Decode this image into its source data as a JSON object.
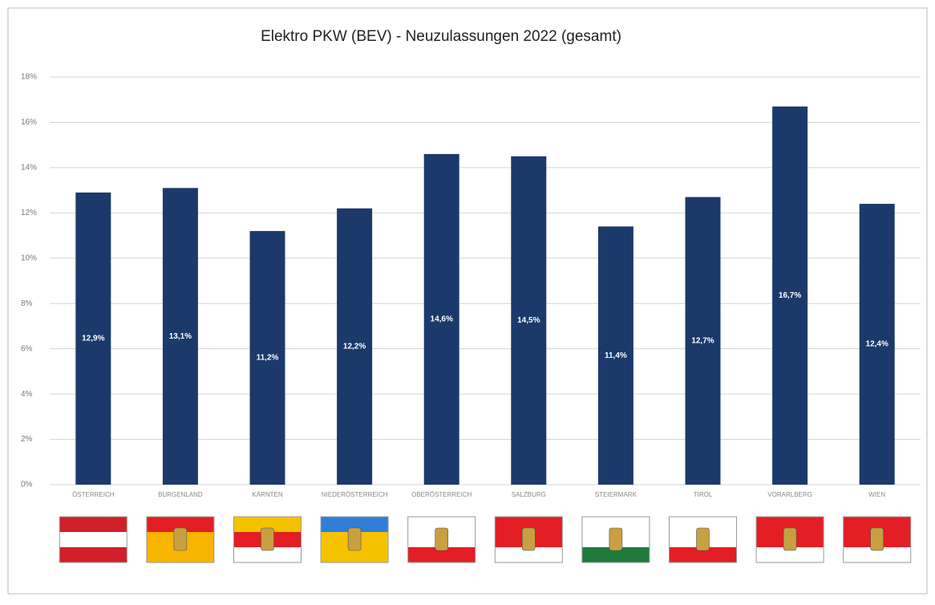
{
  "chart_data": {
    "type": "bar",
    "title": "Elektro PKW (BEV) - Neuzulassungen 2022 (gesamt)",
    "categories": [
      "ÖSTERREICH",
      "BURGENLAND",
      "KÄRNTEN",
      "NIEDERÖSTERREICH",
      "OBERÖSTERREICH",
      "SALZBURG",
      "STEIERMARK",
      "TIROL",
      "VORARLBERG",
      "WIEN"
    ],
    "values": [
      12.9,
      13.1,
      11.2,
      12.2,
      14.6,
      14.5,
      11.4,
      12.7,
      16.7,
      12.4
    ],
    "value_labels": [
      "12,9%",
      "13,1%",
      "11,2%",
      "12,2%",
      "14,6%",
      "14,5%",
      "11,4%",
      "12,7%",
      "16,7%",
      "12,4%"
    ],
    "color": "#1b3a6b",
    "ylim": [
      0,
      18
    ],
    "yticks": [
      {
        "value": 0,
        "label": "0%"
      },
      {
        "value": 2,
        "label": "2%"
      },
      {
        "value": 4,
        "label": "4%"
      },
      {
        "value": 6,
        "label": "6%"
      },
      {
        "value": 8,
        "label": "8%"
      },
      {
        "value": 10,
        "label": "10%"
      },
      {
        "value": 12,
        "label": "12%"
      },
      {
        "value": 14,
        "label": "14%"
      },
      {
        "value": 16,
        "label": "16%"
      },
      {
        "value": 18,
        "label": "18%"
      }
    ],
    "grid": true
  }
}
